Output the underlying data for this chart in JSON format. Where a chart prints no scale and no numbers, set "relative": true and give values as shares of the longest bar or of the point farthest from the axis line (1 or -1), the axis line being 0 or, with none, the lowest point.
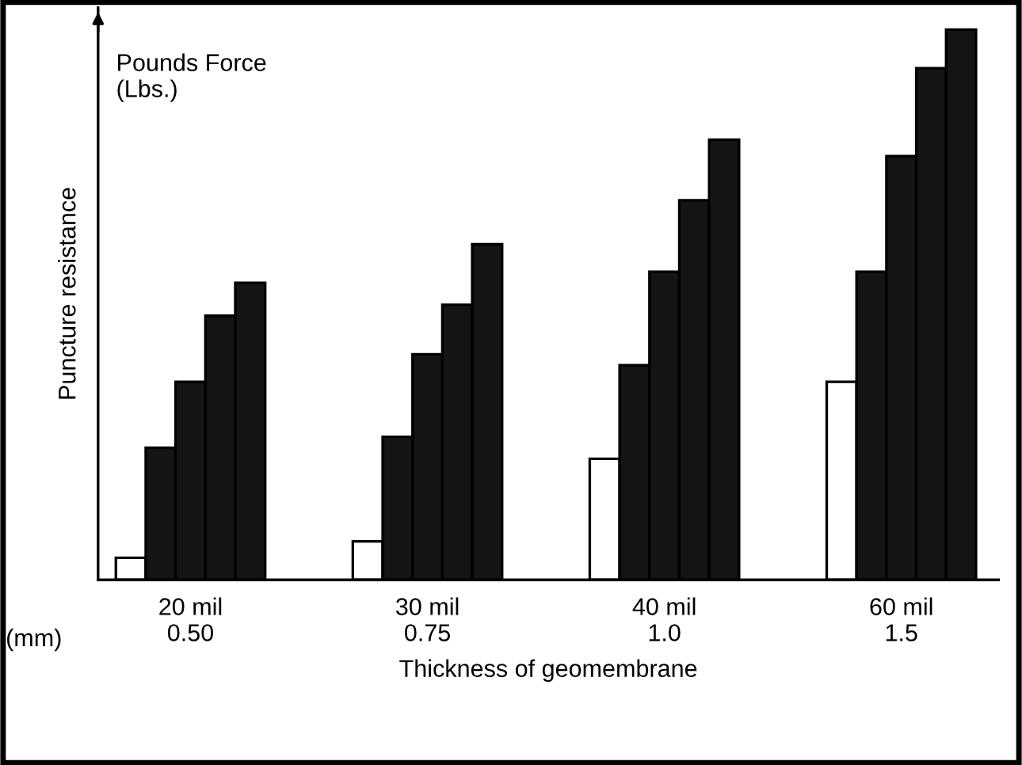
{
  "chart_data": {
    "type": "bar",
    "relative": true,
    "xlabel": "Thickness of geomembrane",
    "ylabel": "Puncture resistance",
    "categories": [
      "20 mil\n0.50",
      "30 mil\n0.75",
      "40 mil\n1.0",
      "60 mil\n1.5"
    ],
    "series": [
      {
        "color": "#ffffff",
        "values": [
          0.04,
          0.07,
          0.22,
          0.36
        ]
      },
      {
        "color": "#141414",
        "values": [
          0.24,
          0.26,
          0.39,
          0.56
        ]
      },
      {
        "color": "#141414",
        "values": [
          0.36,
          0.41,
          0.56,
          0.77
        ]
      },
      {
        "color": "#141414",
        "values": [
          0.48,
          0.5,
          0.69,
          0.93
        ]
      },
      {
        "color": "#141414",
        "values": [
          0.54,
          0.61,
          0.8,
          1.0
        ]
      }
    ],
    "annotations": [
      "Pounds Force\n(Lbs.)",
      "(mm)"
    ],
    "tick_labels": "x",
    "grid": false,
    "legend": false
  }
}
